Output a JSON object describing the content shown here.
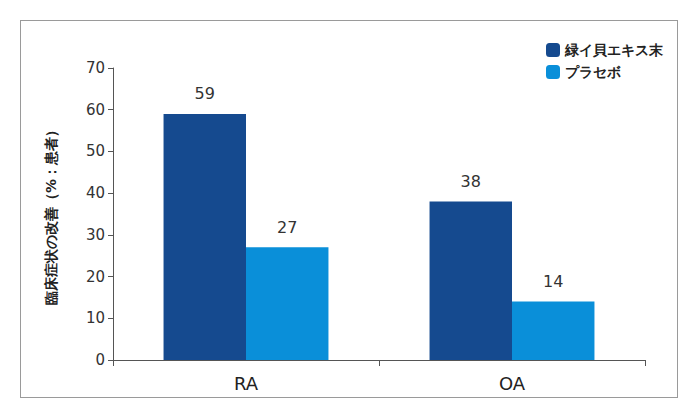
{
  "chart_data": {
    "type": "bar",
    "y_label": "臨床症状の改善（%：患者）",
    "categories": [
      "RA",
      "OA"
    ],
    "series": [
      {
        "name": "緑イ貝エキス末",
        "color": "#154a8f",
        "values": [
          59,
          38
        ]
      },
      {
        "name": "プラセボ",
        "color": "#0a8fd9",
        "values": [
          27,
          14
        ]
      }
    ],
    "ylim": [
      0,
      70
    ],
    "yticks": [
      0,
      10,
      20,
      30,
      40,
      50,
      60,
      70
    ],
    "grid": false,
    "legend": "top-right",
    "data_labels": true
  }
}
